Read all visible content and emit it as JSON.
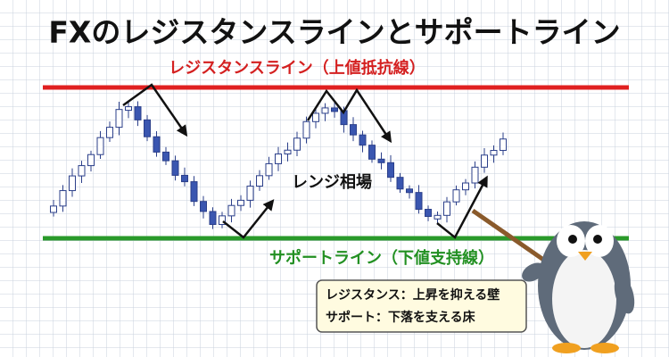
{
  "header": {
    "title": "FXのレジスタンスラインとサポートライン"
  },
  "labels": {
    "resistance": "レジスタンスライン（上値抵抗線）",
    "range": "レンジ相場",
    "support": "サポートライン（下値支持線）"
  },
  "callout": {
    "lines": [
      "レジスタンス：上昇を抑える壁",
      "サポート：下落を支える床"
    ]
  }
}
